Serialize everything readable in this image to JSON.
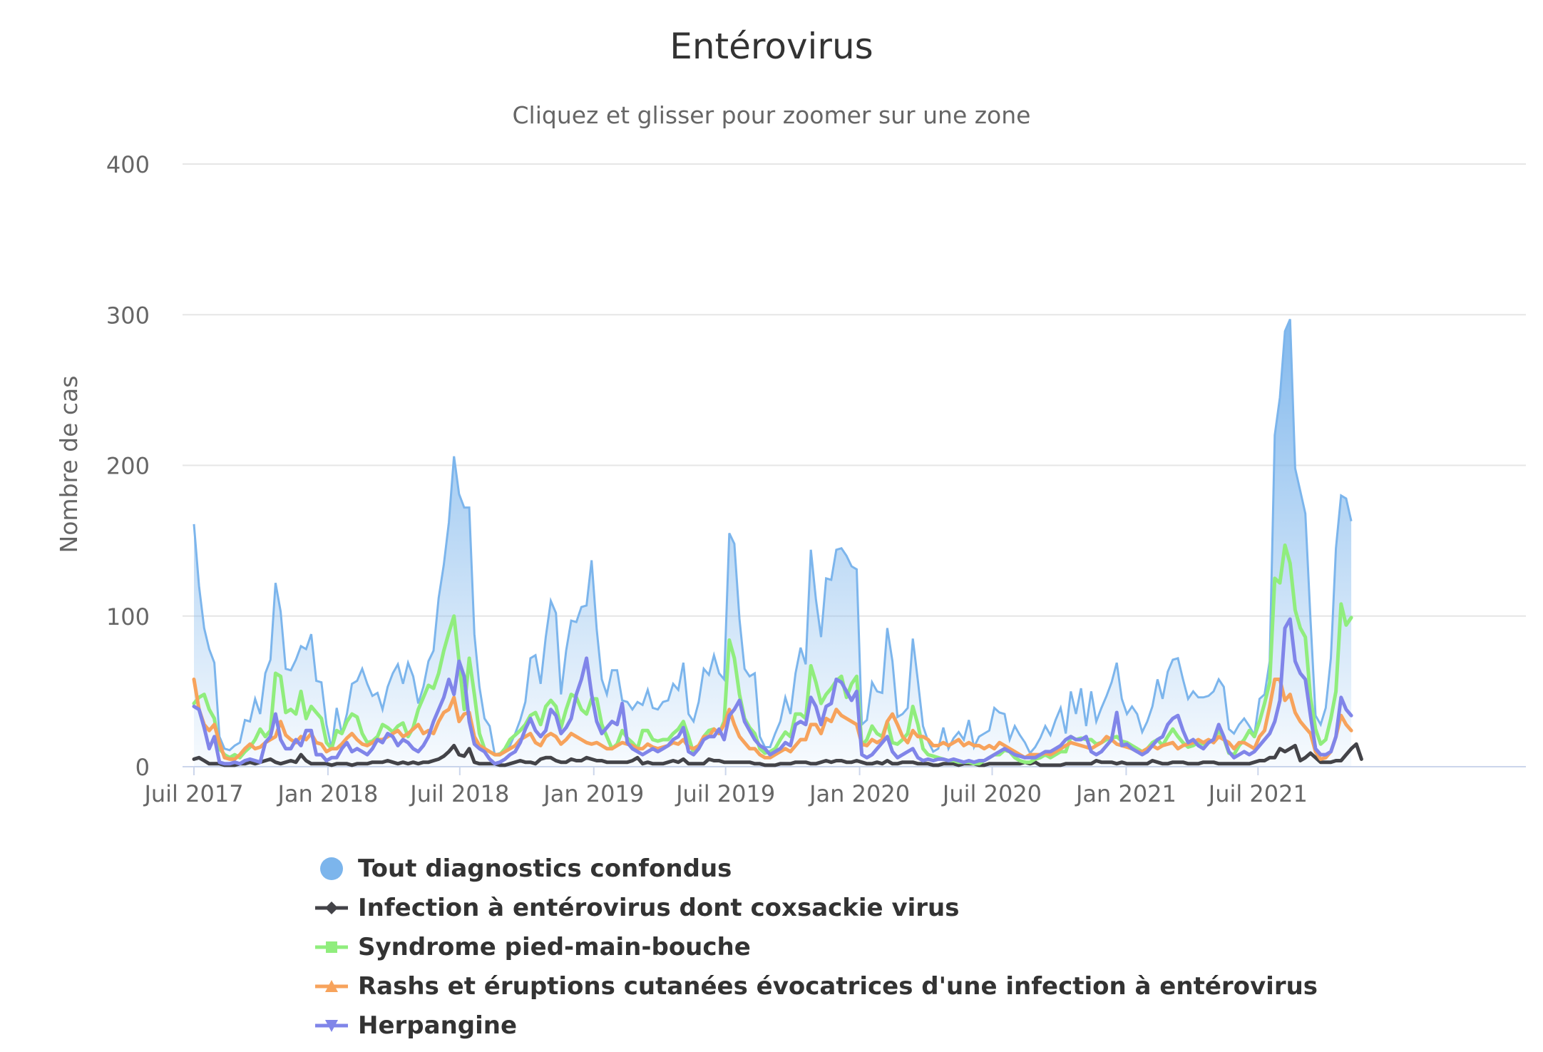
{
  "title": "Entérovirus",
  "subtitle": "Cliquez et glisser pour zoomer sur une zone",
  "chart_data": {
    "type": "line",
    "title": "Entérovirus",
    "subtitle": "Cliquez et glisser pour zoomer sur une zone",
    "ylabel": "Nombre de cas",
    "xlabel": "",
    "ylim": [
      0,
      400
    ],
    "yticks": [
      "0",
      "100",
      "200",
      "300",
      "400"
    ],
    "xticks": [
      "Juil 2017",
      "Jan 2018",
      "Juil 2018",
      "Jan 2019",
      "Juil 2019",
      "Jan 2020",
      "Juil 2020",
      "Jan 2021",
      "Juil 2021"
    ],
    "x_start": "2017-07-01",
    "grid": true,
    "legend_position": "bottom",
    "series": [
      {
        "name": "Tout diagnostics confondus",
        "type": "area",
        "color": "#7cb5ec",
        "marker": "circle",
        "values": [
          161,
          120,
          92,
          78,
          69,
          20,
          12,
          11,
          14,
          16,
          31,
          30,
          45,
          35,
          62,
          71,
          122,
          103,
          65,
          64,
          71,
          80,
          78,
          88,
          57,
          56,
          28,
          12,
          39,
          22,
          35,
          55,
          57,
          65,
          55,
          47,
          49,
          38,
          53,
          62,
          68,
          55,
          69,
          60,
          42,
          53,
          70,
          77,
          112,
          134,
          162,
          206,
          181,
          172,
          172,
          88,
          53,
          32,
          27,
          8,
          9,
          10,
          14,
          22,
          31,
          43,
          72,
          74,
          55,
          86,
          110,
          102,
          48,
          77,
          97,
          96,
          106,
          107,
          137,
          91,
          58,
          48,
          64,
          64,
          44,
          43,
          38,
          43,
          41,
          51,
          39,
          38,
          43,
          44,
          55,
          51,
          69,
          35,
          30,
          43,
          65,
          61,
          74,
          62,
          58,
          155,
          148,
          98,
          65,
          60,
          62,
          20,
          13,
          13,
          22,
          30,
          46,
          35,
          62,
          79,
          68,
          144,
          111,
          86,
          125,
          124,
          144,
          145,
          140,
          133,
          131,
          28,
          31,
          56,
          50,
          49,
          92,
          70,
          33,
          35,
          39,
          85,
          57,
          27,
          17,
          10,
          12,
          26,
          12,
          19,
          23,
          18,
          31,
          13,
          20,
          22,
          24,
          39,
          36,
          35,
          18,
          27,
          21,
          16,
          9,
          13,
          19,
          27,
          21,
          31,
          39,
          22,
          50,
          35,
          52,
          27,
          50,
          30,
          39,
          47,
          56,
          69,
          45,
          35,
          40,
          35,
          23,
          30,
          40,
          58,
          45,
          63,
          71,
          72,
          58,
          45,
          50,
          46,
          46,
          47,
          50,
          58,
          53,
          25,
          22,
          28,
          32,
          27,
          21,
          45,
          48,
          70,
          220,
          245,
          289,
          297,
          198,
          183,
          168,
          98,
          34,
          28,
          39,
          72,
          145,
          180,
          178,
          163
        ]
      },
      {
        "name": "Infection à entérovirus dont coxsackie virus",
        "type": "line",
        "color": "#434348",
        "marker": "diamond",
        "values": [
          5,
          6,
          4,
          2,
          2,
          2,
          1,
          1,
          1,
          2,
          2,
          3,
          2,
          3,
          4,
          5,
          3,
          2,
          3,
          4,
          3,
          8,
          4,
          2,
          2,
          2,
          2,
          1,
          2,
          2,
          2,
          1,
          2,
          2,
          2,
          3,
          3,
          3,
          4,
          3,
          2,
          3,
          2,
          3,
          2,
          3,
          3,
          4,
          5,
          7,
          10,
          14,
          8,
          7,
          12,
          3,
          2,
          2,
          2,
          2,
          1,
          1,
          2,
          3,
          4,
          3,
          3,
          2,
          5,
          6,
          6,
          4,
          3,
          3,
          5,
          4,
          4,
          6,
          5,
          4,
          4,
          3,
          3,
          3,
          3,
          3,
          4,
          6,
          2,
          3,
          2,
          2,
          2,
          3,
          4,
          3,
          5,
          2,
          2,
          2,
          2,
          5,
          4,
          4,
          3,
          3,
          3,
          3,
          3,
          3,
          2,
          2,
          1,
          1,
          1,
          2,
          2,
          2,
          3,
          3,
          3,
          2,
          2,
          3,
          4,
          3,
          4,
          4,
          3,
          3,
          4,
          3,
          2,
          2,
          3,
          2,
          4,
          2,
          2,
          3,
          3,
          3,
          2,
          2,
          2,
          1,
          1,
          2,
          2,
          2,
          1,
          2,
          2,
          2,
          1,
          1,
          2,
          2,
          2,
          2,
          2,
          2,
          2,
          3,
          2,
          3,
          1,
          1,
          1,
          1,
          1,
          2,
          2,
          2,
          2,
          2,
          2,
          4,
          3,
          3,
          3,
          2,
          3,
          2,
          2,
          2,
          2,
          2,
          4,
          3,
          2,
          2,
          3,
          3,
          3,
          2,
          2,
          2,
          3,
          3,
          3,
          2,
          2,
          2,
          2,
          2,
          2,
          2,
          3,
          4,
          4,
          6,
          6,
          12,
          10,
          12,
          14,
          4,
          6,
          9,
          6,
          3,
          3,
          3,
          4,
          4,
          8,
          12,
          15,
          5
        ]
      },
      {
        "name": "Syndrome pied-main-bouche",
        "type": "line",
        "color": "#90ed7d",
        "marker": "square",
        "values": [
          42,
          46,
          48,
          38,
          32,
          12,
          8,
          6,
          8,
          6,
          10,
          13,
          18,
          25,
          20,
          24,
          62,
          60,
          36,
          38,
          35,
          50,
          32,
          40,
          36,
          32,
          16,
          12,
          24,
          22,
          30,
          35,
          33,
          22,
          16,
          17,
          20,
          28,
          26,
          23,
          27,
          29,
          20,
          26,
          38,
          46,
          54,
          52,
          62,
          77,
          89,
          100,
          70,
          38,
          72,
          48,
          22,
          12,
          10,
          8,
          8,
          12,
          18,
          21,
          24,
          28,
          34,
          36,
          28,
          40,
          44,
          40,
          26,
          38,
          48,
          46,
          38,
          35,
          45,
          45,
          28,
          20,
          12,
          15,
          24,
          19,
          16,
          12,
          24,
          24,
          18,
          17,
          18,
          18,
          22,
          25,
          30,
          20,
          9,
          12,
          20,
          24,
          25,
          22,
          30,
          84,
          72,
          48,
          32,
          26,
          22,
          12,
          9,
          10,
          12,
          18,
          23,
          20,
          35,
          35,
          32,
          67,
          56,
          42,
          48,
          52,
          57,
          60,
          46,
          55,
          60,
          14,
          18,
          27,
          22,
          20,
          30,
          16,
          15,
          18,
          22,
          40,
          28,
          12,
          8,
          7,
          6,
          5,
          4,
          4,
          3,
          3,
          3,
          2,
          2,
          4,
          6,
          8,
          8,
          11,
          10,
          6,
          4,
          3,
          3,
          5,
          6,
          8,
          6,
          8,
          10,
          10,
          20,
          18,
          19,
          18,
          18,
          15,
          16,
          18,
          19,
          20,
          17,
          16,
          14,
          12,
          10,
          12,
          16,
          18,
          14,
          20,
          25,
          20,
          16,
          13,
          14,
          16,
          15,
          16,
          18,
          24,
          19,
          9,
          8,
          14,
          18,
          24,
          20,
          30,
          42,
          56,
          125,
          122,
          147,
          135,
          104,
          92,
          86,
          46,
          25,
          15,
          18,
          32,
          50,
          108,
          94,
          99
        ]
      },
      {
        "name": "Rashs et éruptions cutanées évocatrices d'une infection à entérovirus",
        "type": "line",
        "color": "#f7a35c",
        "marker": "triangle",
        "values": [
          58,
          38,
          28,
          24,
          28,
          16,
          6,
          5,
          5,
          8,
          12,
          15,
          12,
          13,
          16,
          18,
          20,
          30,
          21,
          18,
          16,
          20,
          18,
          22,
          16,
          15,
          10,
          12,
          12,
          15,
          19,
          22,
          18,
          15,
          14,
          16,
          18,
          18,
          20,
          22,
          24,
          20,
          22,
          25,
          28,
          22,
          24,
          22,
          30,
          36,
          38,
          46,
          30,
          35,
          36,
          20,
          14,
          12,
          10,
          8,
          8,
          10,
          12,
          14,
          18,
          20,
          22,
          16,
          14,
          20,
          22,
          20,
          15,
          18,
          22,
          20,
          18,
          16,
          15,
          16,
          14,
          12,
          12,
          14,
          16,
          15,
          14,
          12,
          12,
          15,
          13,
          12,
          13,
          14,
          16,
          15,
          18,
          13,
          12,
          14,
          20,
          20,
          25,
          22,
          28,
          38,
          28,
          20,
          16,
          12,
          12,
          8,
          6,
          6,
          8,
          10,
          12,
          10,
          14,
          18,
          18,
          28,
          28,
          22,
          32,
          30,
          38,
          34,
          32,
          30,
          28,
          15,
          14,
          18,
          16,
          18,
          30,
          35,
          28,
          20,
          16,
          24,
          20,
          20,
          18,
          14,
          14,
          16,
          14,
          16,
          18,
          14,
          16,
          14,
          14,
          12,
          14,
          12,
          16,
          14,
          12,
          10,
          8,
          6,
          8,
          8,
          8,
          9,
          8,
          10,
          12,
          14,
          16,
          15,
          14,
          13,
          12,
          14,
          16,
          20,
          18,
          15,
          14,
          13,
          12,
          10,
          10,
          12,
          14,
          12,
          14,
          15,
          16,
          12,
          14,
          15,
          16,
          18,
          16,
          18,
          16,
          20,
          18,
          16,
          12,
          16,
          16,
          14,
          12,
          20,
          24,
          40,
          58,
          58,
          44,
          48,
          36,
          30,
          26,
          22,
          10,
          5,
          6,
          10,
          20,
          34,
          28,
          24
        ]
      },
      {
        "name": "Herpangine",
        "type": "line",
        "color": "#8085e9",
        "marker": "triangle-down",
        "values": [
          40,
          38,
          26,
          12,
          20,
          3,
          2,
          2,
          3,
          2,
          4,
          5,
          4,
          3,
          16,
          20,
          35,
          18,
          12,
          12,
          18,
          14,
          24,
          24,
          8,
          8,
          4,
          6,
          6,
          12,
          16,
          10,
          12,
          10,
          8,
          12,
          18,
          16,
          22,
          20,
          14,
          18,
          16,
          12,
          10,
          14,
          20,
          30,
          38,
          46,
          58,
          48,
          70,
          60,
          30,
          15,
          12,
          10,
          5,
          2,
          3,
          5,
          8,
          10,
          16,
          25,
          32,
          24,
          20,
          24,
          38,
          34,
          22,
          26,
          32,
          48,
          58,
          72,
          48,
          30,
          22,
          26,
          30,
          28,
          42,
          16,
          12,
          10,
          8,
          10,
          12,
          10,
          12,
          14,
          18,
          20,
          26,
          10,
          8,
          12,
          18,
          20,
          20,
          25,
          18,
          34,
          38,
          44,
          30,
          24,
          18,
          14,
          12,
          8,
          10,
          12,
          16,
          14,
          28,
          30,
          28,
          46,
          40,
          28,
          40,
          42,
          58,
          56,
          50,
          44,
          50,
          8,
          6,
          8,
          12,
          16,
          20,
          10,
          6,
          8,
          10,
          12,
          6,
          4,
          5,
          4,
          5,
          5,
          4,
          5,
          4,
          3,
          4,
          3,
          4,
          4,
          6,
          8,
          10,
          12,
          10,
          8,
          7,
          6,
          6,
          6,
          8,
          10,
          10,
          12,
          14,
          18,
          20,
          18,
          18,
          20,
          10,
          8,
          10,
          14,
          18,
          36,
          14,
          15,
          12,
          10,
          8,
          10,
          14,
          18,
          20,
          28,
          32,
          34,
          24,
          16,
          18,
          14,
          12,
          16,
          18,
          28,
          20,
          10,
          6,
          8,
          10,
          8,
          10,
          14,
          18,
          22,
          30,
          44,
          92,
          98,
          70,
          62,
          58,
          34,
          12,
          8,
          8,
          10,
          20,
          46,
          38,
          34
        ]
      }
    ]
  }
}
